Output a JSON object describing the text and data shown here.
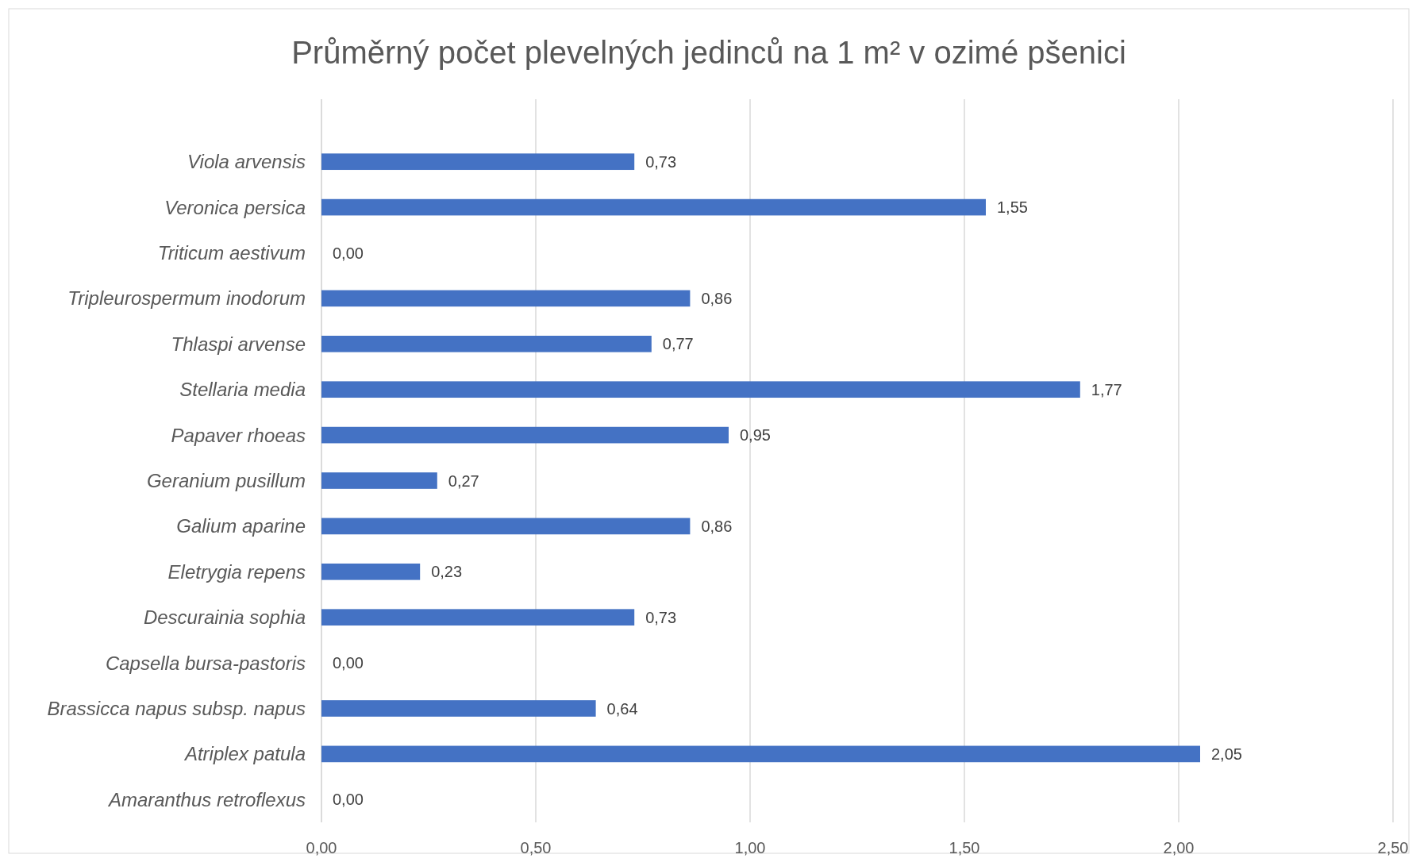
{
  "chart_data": {
    "type": "bar",
    "orientation": "horizontal",
    "title": "Průměrný počet plevelných jedinců na 1 m² v ozimé pšenici",
    "categories": [
      "Viola arvensis",
      "Veronica persica",
      "Triticum aestivum",
      "Tripleurospermum inodorum",
      "Thlaspi arvense",
      "Stellaria media",
      "Papaver rhoeas",
      "Geranium pusillum",
      "Galium aparine",
      "Eletrygia repens",
      "Descurainia sophia",
      "Capsella bursa-pastoris",
      "Brassicca napus subsp. napus",
      "Atriplex patula",
      "Amaranthus retroflexus"
    ],
    "values": [
      0.73,
      1.55,
      0,
      0.86,
      0.77,
      1.77,
      0.95,
      0.27,
      0.86,
      0.23,
      0.73,
      0,
      0.64,
      2.05,
      0
    ],
    "value_labels": [
      "0,73",
      "1,55",
      "0,00",
      "0,86",
      "0,77",
      "1,77",
      "0,95",
      "0,27",
      "0,86",
      "0,23",
      "0,73",
      "0,00",
      "0,64",
      "2,05",
      "0,00"
    ],
    "color": "#4472c4",
    "xlim": [
      0,
      2.5
    ],
    "xticks": [
      {
        "value": 0,
        "label": "0,00"
      },
      {
        "value": 0.5,
        "label": "0,50"
      },
      {
        "value": 1,
        "label": "1,00"
      },
      {
        "value": 1.5,
        "label": "1,50"
      },
      {
        "value": 2,
        "label": "2,00"
      },
      {
        "value": 2.5,
        "label": "2,50"
      }
    ],
    "grid": "x"
  }
}
